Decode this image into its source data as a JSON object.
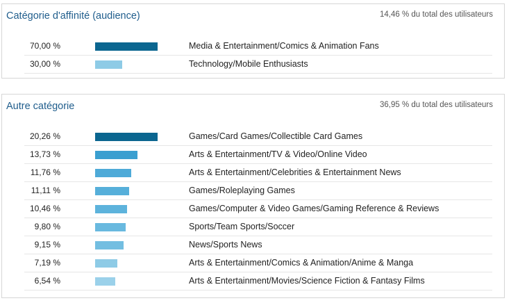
{
  "panels": [
    {
      "title": "Catégorie d'affinité (audience)",
      "total": "14,46 % du total des utilisateurs",
      "rows": [
        {
          "pct": "70,00 %",
          "value": 70.0,
          "color": "#0b6690",
          "label": "Media & Entertainment/Comics & Animation Fans"
        },
        {
          "pct": "30,00 %",
          "value": 30.0,
          "color": "#8ecbe6",
          "label": "Technology/Mobile Enthusiasts"
        }
      ]
    },
    {
      "title": "Autre catégorie",
      "total": "36,95 % du total des utilisateurs",
      "rows": [
        {
          "pct": "20,26 %",
          "value": 20.26,
          "color": "#0b6690",
          "label": "Games/Card Games/Collectible Card Games"
        },
        {
          "pct": "13,73 %",
          "value": 13.73,
          "color": "#3a9fd0",
          "label": "Arts & Entertainment/TV & Video/Online Video"
        },
        {
          "pct": "11,76 %",
          "value": 11.76,
          "color": "#4eaad8",
          "label": "Arts & Entertainment/Celebrities & Entertainment News"
        },
        {
          "pct": "11,11 %",
          "value": 11.11,
          "color": "#56afda",
          "label": "Games/Roleplaying Games"
        },
        {
          "pct": "10,46 %",
          "value": 10.46,
          "color": "#5db3dc",
          "label": "Games/Computer & Video Games/Gaming Reference & Reviews"
        },
        {
          "pct": "9,80 %",
          "value": 9.8,
          "color": "#69b9df",
          "label": "Sports/Team Sports/Soccer"
        },
        {
          "pct": "9,15 %",
          "value": 9.15,
          "color": "#73bee1",
          "label": "News/Sports News"
        },
        {
          "pct": "7,19 %",
          "value": 7.19,
          "color": "#8ecbe6",
          "label": "Arts & Entertainment/Comics & Animation/Anime & Manga"
        },
        {
          "pct": "6,54 %",
          "value": 6.54,
          "color": "#9bd1ea",
          "label": "Arts & Entertainment/Movies/Science Fiction & Fantasy Films"
        }
      ]
    }
  ]
}
